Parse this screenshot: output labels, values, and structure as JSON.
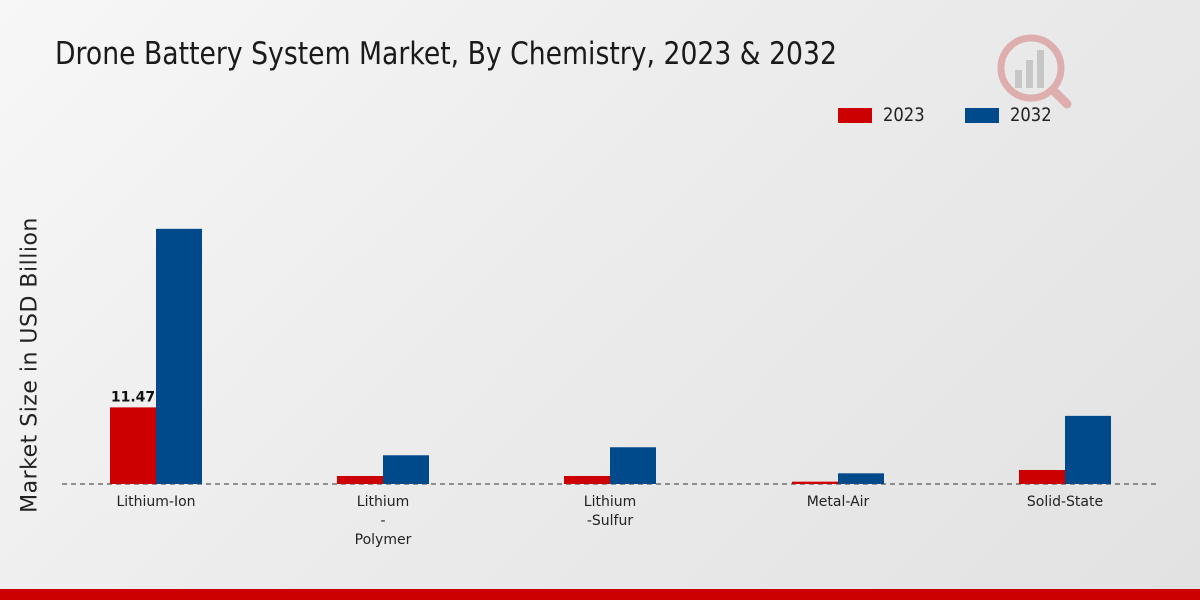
{
  "chart_data": {
    "type": "bar",
    "title": "Drone Battery System Market, By Chemistry, 2023 & 2032",
    "ylabel": "Market Size in USD Billion",
    "xlabel": "",
    "categories": [
      [
        "Lithium-Ion"
      ],
      [
        "Lithium",
        "-",
        "Polymer"
      ],
      [
        "Lithium",
        "-Sulfur"
      ],
      [
        "Metal-Air"
      ],
      [
        "Solid-State"
      ]
    ],
    "series": [
      {
        "name": "2023",
        "color": "#cc0000",
        "values": [
          11.47,
          1.2,
          1.2,
          0.35,
          2.1
        ]
      },
      {
        "name": "2032",
        "color": "#004a8c",
        "values": [
          38.2,
          4.3,
          5.5,
          1.6,
          10.2
        ]
      }
    ],
    "data_labels": [
      {
        "series": 0,
        "index": 0,
        "text": "11.47"
      }
    ],
    "ylim": [
      0,
      50
    ],
    "grid": false,
    "legend": "top-right",
    "baseline_style": "dashed"
  }
}
